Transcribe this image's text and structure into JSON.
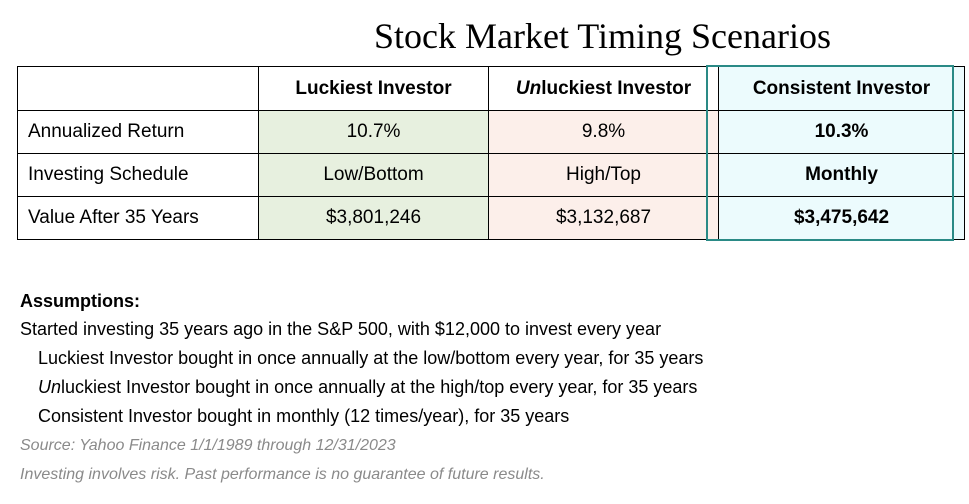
{
  "title": "Stock Market Timing Scenarios",
  "table": {
    "headers": [
      "",
      {
        "emph": "Un",
        "rest": "luckiest Investor",
        "plain": "Luckiest Investor"
      },
      {
        "emph": "Un",
        "rest": "luckiest Investor"
      },
      "Consistent Investor"
    ],
    "header_labels": {
      "lucky": "Luckiest Investor",
      "unlucky_emph": "Un",
      "unlucky_rest": "luckiest Investor",
      "consistent": "Consistent Investor"
    },
    "rows": [
      {
        "label": "Annualized Return",
        "lucky": "10.7%",
        "unlucky": "9.8%",
        "consistent": "10.3%"
      },
      {
        "label": "Investing Schedule",
        "lucky": "Low/Bottom",
        "unlucky": "High/Top",
        "consistent": "Monthly"
      },
      {
        "label": "Value After 35 Years",
        "lucky": "$3,801,246",
        "unlucky": "$3,132,687",
        "consistent": "$3,475,642"
      }
    ],
    "colors": {
      "lucky_bg": "#e7f0df",
      "unlucky_bg": "#fcefea",
      "consistent_bg": "#ecfbfd",
      "highlight_border": "#2a8a86"
    }
  },
  "assumptions": {
    "heading": "Assumptions:",
    "line1": "Started investing 35 years ago in the S&P 500, with $12,000 to invest every year",
    "line2": "Luckiest Investor bought in once annually at the low/bottom every year, for 35 years",
    "line3_emph": "Un",
    "line3_rest": "luckiest Investor bought in once annually at the high/top every year, for 35 years",
    "line4": "Consistent Investor bought in monthly (12 times/year), for 35  years"
  },
  "source": "Source: Yahoo Finance 1/1/1989 through 12/31/2023",
  "disclaimer": "Investing involves risk. Past performance is no guarantee of future results."
}
